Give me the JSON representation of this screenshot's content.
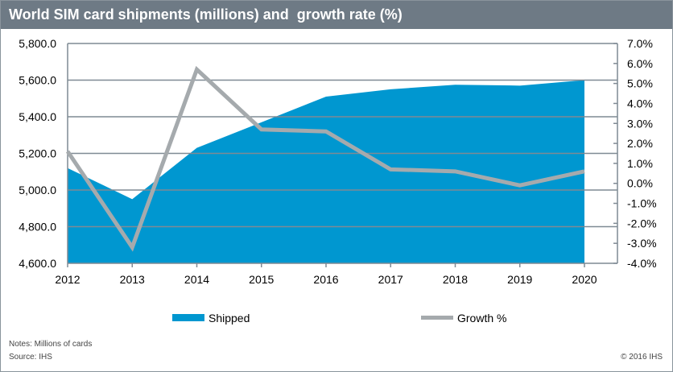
{
  "chart_data": {
    "type": "area+line",
    "title": "World SIM card shipments (millions) and  growth rate (%)",
    "categories": [
      "2012",
      "2013",
      "2014",
      "2015",
      "2016",
      "2017",
      "2018",
      "2019",
      "2020"
    ],
    "series": [
      {
        "name": "Shipped",
        "type": "area",
        "axis": "left",
        "color": "#0097d0",
        "values": [
          5120,
          4950,
          5230,
          5370,
          5510,
          5550,
          5575,
          5570,
          5600
        ]
      },
      {
        "name": "Growth %",
        "type": "line",
        "axis": "right",
        "color": "#a5aaad",
        "values": [
          1.6,
          -3.2,
          5.7,
          2.7,
          2.6,
          0.7,
          0.6,
          -0.1,
          0.6
        ]
      }
    ],
    "left_axis": {
      "ylim": [
        4600,
        5800
      ],
      "ticks": [
        "4,600.0",
        "4,800.0",
        "5,000.0",
        "5,200.0",
        "5,400.0",
        "5,600.0",
        "5,800.0"
      ]
    },
    "right_axis": {
      "ylim": [
        -4,
        7
      ],
      "ticks": [
        "-4.0%",
        "-3.0%",
        "-2.0%",
        "-1.0%",
        "0.0%",
        "1.0%",
        "2.0%",
        "3.0%",
        "4.0%",
        "5.0%",
        "6.0%",
        "7.0%"
      ]
    },
    "grid": true,
    "legend_position": "bottom"
  },
  "notes": "Notes: Millions of cards",
  "source": "Source: IHS",
  "copyright": "© 2016 IHS"
}
